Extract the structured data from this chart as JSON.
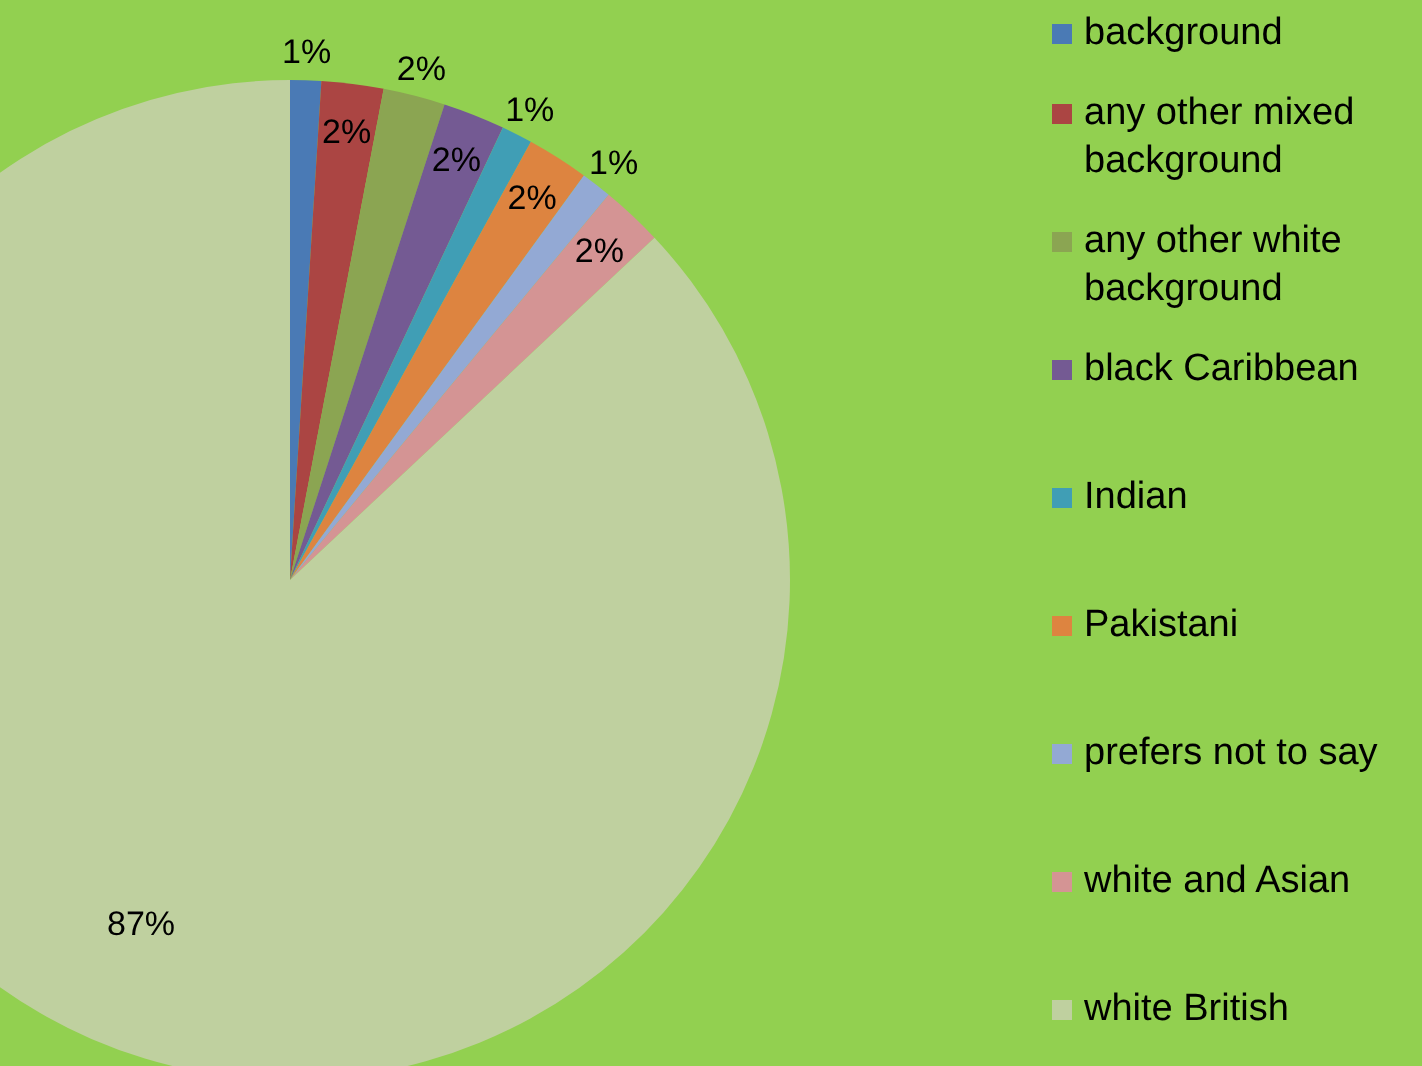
{
  "chart_data": {
    "type": "pie",
    "categories": [
      "background",
      "any other mixed background",
      "any other white background",
      "black Caribbean",
      "Indian",
      "Pakistani",
      "prefers not to say",
      "white and Asian",
      "white British"
    ],
    "values": [
      1,
      2,
      2,
      2,
      1,
      2,
      1,
      2,
      87
    ],
    "colors": [
      "#4a7ab5",
      "#ab4543",
      "#8ba552",
      "#745a93",
      "#409eb5",
      "#dd8440",
      "#93a9d4",
      "#d49494",
      "#bfd09f"
    ],
    "value_labels": [
      "1%",
      "2%",
      "2%",
      "2%",
      "1%",
      "2%",
      "1%",
      "2%",
      "87%"
    ],
    "legend": "right"
  }
}
